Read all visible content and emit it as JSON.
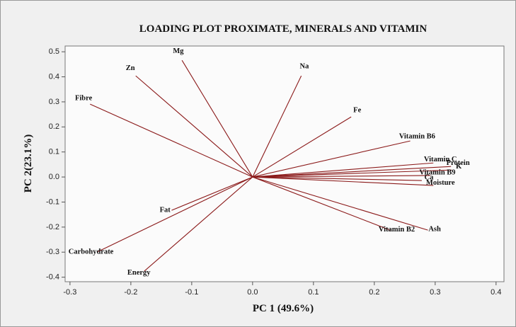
{
  "chart_data": {
    "type": "loading",
    "title": "LOADING PLOT PROXIMATE, MINERALS AND VITAMIN",
    "x_label": "PC 1 (49.6%)",
    "y_label": "PC 2(23.1%)",
    "labels": [
      "Mg",
      "Zn",
      "Na",
      "Fibre",
      "Fe",
      "Vitamin B6",
      "Protein",
      "K",
      "Vitamin C",
      "Vitamin B9",
      "Ca",
      "Moisture",
      "Vitamin B2",
      "Ash",
      "Fat",
      "Carbohydrate",
      "Energy"
    ],
    "x": [
      -0.116,
      -0.192,
      0.08,
      -0.267,
      0.162,
      0.259,
      0.326,
      0.327,
      0.297,
      0.292,
      0.278,
      0.297,
      0.226,
      0.288,
      -0.133,
      -0.255,
      -0.178
    ],
    "y": [
      0.466,
      0.404,
      0.404,
      0.291,
      0.24,
      0.144,
      0.042,
      0.028,
      0.056,
      0.006,
      -0.014,
      -0.034,
      -0.212,
      -0.212,
      -0.133,
      -0.299,
      -0.376
    ],
    "color": "#8b1a1a",
    "xlim": [
      -0.308,
      0.413
    ],
    "ylim": [
      -0.418,
      0.523
    ],
    "xticks": [
      -0.3,
      -0.2,
      -0.1,
      {
        "value": 0,
        "label": "0.0"
      },
      0.1,
      0.2,
      0.3,
      0.4
    ],
    "yticks": [
      -0.4,
      -0.3,
      -0.2,
      -0.1,
      {
        "value": 0,
        "label": "0.0"
      },
      0.1,
      0.2,
      0.3,
      0.4,
      0.5
    ]
  }
}
